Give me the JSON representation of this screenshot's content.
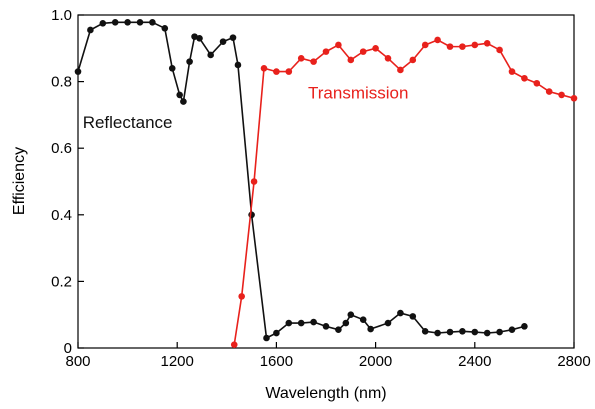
{
  "chart_data": {
    "type": "line",
    "title": "",
    "xlabel": "Wavelength (nm)",
    "ylabel": "Efficiency",
    "xlim": [
      800,
      2800
    ],
    "ylim": [
      0,
      1.0
    ],
    "xticks": [
      800,
      1200,
      1600,
      2000,
      2400,
      2800
    ],
    "yticks": [
      0,
      0.2,
      0.4,
      0.6,
      0.8,
      1.0
    ],
    "xtick_labels": [
      "800",
      "1200",
      "1600",
      "2000",
      "2400",
      "2800"
    ],
    "ytick_labels": [
      "0",
      "0.2",
      "0.4",
      "0.6",
      "0.8",
      "1.0"
    ],
    "grid": false,
    "series": [
      {
        "name": "Reflectance",
        "color": "#111111",
        "label_at": [
          1000,
          0.66
        ],
        "x": [
          800,
          850,
          900,
          950,
          1000,
          1050,
          1100,
          1150,
          1180,
          1210,
          1225,
          1250,
          1270,
          1290,
          1335,
          1385,
          1425,
          1445,
          1500,
          1560,
          1600,
          1650,
          1700,
          1750,
          1800,
          1850,
          1880,
          1900,
          1950,
          1980,
          2050,
          2100,
          2150,
          2200,
          2250,
          2300,
          2350,
          2400,
          2450,
          2500,
          2550,
          2600
        ],
        "y": [
          0.83,
          0.955,
          0.975,
          0.978,
          0.978,
          0.978,
          0.978,
          0.96,
          0.84,
          0.76,
          0.74,
          0.86,
          0.935,
          0.93,
          0.88,
          0.92,
          0.932,
          0.85,
          0.4,
          0.03,
          0.045,
          0.075,
          0.075,
          0.078,
          0.065,
          0.055,
          0.075,
          0.1,
          0.085,
          0.057,
          0.075,
          0.105,
          0.095,
          0.05,
          0.045,
          0.048,
          0.05,
          0.048,
          0.045,
          0.048,
          0.055,
          0.065
        ]
      },
      {
        "name": "Transmission",
        "color": "#e8211c",
        "label_at": [
          1930,
          0.75
        ],
        "x": [
          1430,
          1460,
          1510,
          1550,
          1600,
          1650,
          1700,
          1750,
          1800,
          1850,
          1900,
          1950,
          2000,
          2050,
          2100,
          2150,
          2200,
          2250,
          2300,
          2350,
          2400,
          2450,
          2500,
          2550,
          2600,
          2650,
          2700,
          2750,
          2800
        ],
        "y": [
          0.01,
          0.155,
          0.5,
          0.84,
          0.83,
          0.83,
          0.87,
          0.86,
          0.89,
          0.91,
          0.865,
          0.89,
          0.9,
          0.87,
          0.835,
          0.865,
          0.91,
          0.925,
          0.905,
          0.905,
          0.91,
          0.915,
          0.895,
          0.83,
          0.81,
          0.795,
          0.77,
          0.76,
          0.75
        ]
      }
    ]
  }
}
